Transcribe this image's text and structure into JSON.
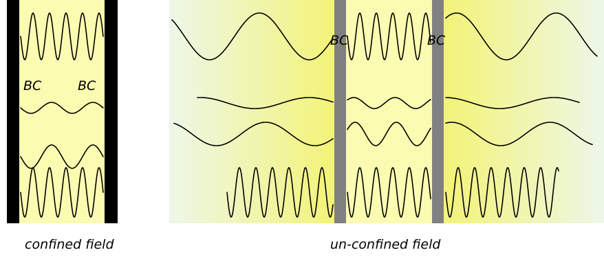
{
  "labels": {
    "bc": "BC",
    "confined_caption": "confined field",
    "unconfined_caption": "un-confined field"
  },
  "colors": {
    "confined_fill": "#fbfbb1",
    "wall_confined": "#000000",
    "wall_unconfined": "#808080",
    "fade_edge": "#eef8e8",
    "fade_center": "#f5f57a",
    "wave_stroke": "#000000"
  }
}
